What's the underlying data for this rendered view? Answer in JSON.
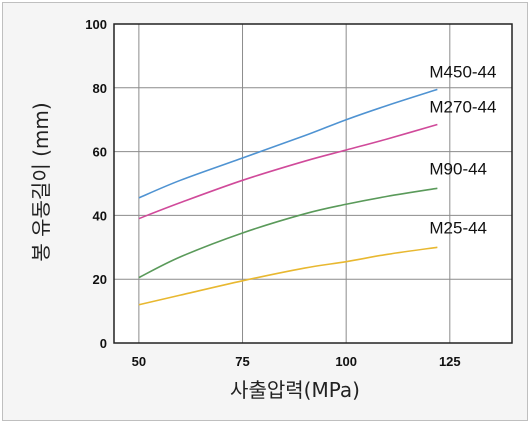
{
  "chart_data": {
    "type": "line",
    "xlabel": "사출압력(MPa)",
    "ylabel": "봉 유동길이 (mm)",
    "xlim": [
      44,
      140
    ],
    "ylim": [
      0,
      100
    ],
    "x_ticks": [
      50,
      75,
      100,
      125
    ],
    "y_ticks": [
      0,
      20,
      40,
      60,
      80,
      100
    ],
    "grid": true,
    "legend": "inline labels at line ends",
    "series": [
      {
        "name": "M450-44",
        "color": "#4f93d2",
        "x": [
          50,
          60,
          75,
          90,
          100,
          110,
          122
        ],
        "y": [
          45.5,
          51,
          58,
          65,
          70,
          74.5,
          79.5
        ]
      },
      {
        "name": "M270-44",
        "color": "#d04a9a",
        "x": [
          50,
          60,
          75,
          90,
          100,
          110,
          122
        ],
        "y": [
          39,
          44,
          51,
          57,
          60.5,
          64,
          68.5
        ]
      },
      {
        "name": "M90-44",
        "color": "#5a9a5a",
        "x": [
          50,
          60,
          75,
          90,
          100,
          110,
          122
        ],
        "y": [
          20.5,
          27,
          34.5,
          40.5,
          43.5,
          46,
          48.5
        ]
      },
      {
        "name": "M25-44",
        "color": "#e8b830",
        "x": [
          50,
          60,
          75,
          90,
          100,
          110,
          122
        ],
        "y": [
          12,
          15,
          19.5,
          23.5,
          25.5,
          27.8,
          30
        ]
      }
    ]
  }
}
